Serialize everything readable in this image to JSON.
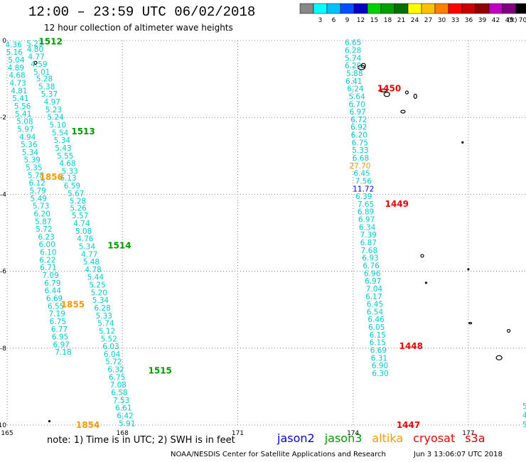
{
  "header": {
    "title": "12:00 – 23:59 UTC 06/02/2018",
    "subtitle": "12 hour collection of altimeter wave heights"
  },
  "colorbar": {
    "unit": "(ft)",
    "bins": [
      {
        "label": "",
        "color": "#888888"
      },
      {
        "label": "3",
        "color": "#00ffff"
      },
      {
        "label": "6",
        "color": "#00c0ff"
      },
      {
        "label": "9",
        "color": "#0050ff"
      },
      {
        "label": "12",
        "color": "#0000c0"
      },
      {
        "label": "15",
        "color": "#00d000"
      },
      {
        "label": "18",
        "color": "#00a000"
      },
      {
        "label": "21",
        "color": "#007000"
      },
      {
        "label": "24",
        "color": "#ffff00"
      },
      {
        "label": "27",
        "color": "#ffc000"
      },
      {
        "label": "30",
        "color": "#ff8000"
      },
      {
        "label": "33",
        "color": "#ff0000"
      },
      {
        "label": "36",
        "color": "#c80000"
      },
      {
        "label": "39",
        "color": "#900000"
      },
      {
        "label": "42",
        "color": "#c000c0"
      },
      {
        "label": "45",
        "color": "#800080"
      },
      {
        "label": "70",
        "color": "#000000"
      }
    ]
  },
  "footer": {
    "note": "note:  1) Time is in UTC;  2) SWH is in feet",
    "legend": [
      {
        "name": "jason2",
        "color": "#0000dd"
      },
      {
        "name": "jason3",
        "color": "#009900"
      },
      {
        "name": "altika",
        "color": "#ff9900"
      },
      {
        "name": "cryosat",
        "color": "#ee0000"
      },
      {
        "name": "s3a",
        "color": "#cc0000"
      }
    ],
    "credit": "NOAA/NESDIS Center for Satellite Applications and Research",
    "timestamp": "Jun  3 13:06:07 UTC 2018"
  },
  "chart_data": {
    "type": "scatter",
    "xlim": [
      165,
      178.5
    ],
    "ylim": [
      -10,
      0
    ],
    "x_ticks": [
      {
        "value": 165,
        "label": "165"
      },
      {
        "value": 168,
        "label": "168"
      },
      {
        "value": 171,
        "label": "171"
      },
      {
        "value": 174,
        "label": "174"
      },
      {
        "value": 177,
        "label": "177"
      }
    ],
    "y_ticks": [
      {
        "value": 0,
        "label": "0"
      },
      {
        "value": -2,
        "label": "-2"
      },
      {
        "value": -4,
        "label": "-4"
      },
      {
        "value": -6,
        "label": "-6"
      },
      {
        "value": -8,
        "label": "-8"
      },
      {
        "value": -10,
        "label": "-10"
      }
    ],
    "grid": "dotted",
    "tracks": [
      {
        "satellite": "altika",
        "color": "#00cccc",
        "points": [
          {
            "x": 165.72,
            "y": -0.07,
            "v": "5.23"
          },
          {
            "x": 165.73,
            "y": -0.22,
            "v": "4.80"
          },
          {
            "x": 165.76,
            "y": -0.42,
            "v": "4.77"
          },
          {
            "x": 165.83,
            "y": -0.61,
            "v": "4.59"
          },
          {
            "x": 165.9,
            "y": -0.81,
            "v": "5.01"
          },
          {
            "x": 165.97,
            "y": -0.99,
            "v": "5.28"
          },
          {
            "x": 166.03,
            "y": -1.19,
            "v": "5.38"
          },
          {
            "x": 166.1,
            "y": -1.39,
            "v": "5.37"
          },
          {
            "x": 166.17,
            "y": -1.59,
            "v": "4.97"
          },
          {
            "x": 166.21,
            "y": -1.79,
            "v": "5.23"
          },
          {
            "x": 166.26,
            "y": -1.99,
            "v": "5.24"
          },
          {
            "x": 166.32,
            "y": -2.19,
            "v": "5.10"
          },
          {
            "x": 166.38,
            "y": -2.39,
            "v": "5.54"
          },
          {
            "x": 166.43,
            "y": -2.59,
            "v": "5.34"
          },
          {
            "x": 166.46,
            "y": -2.79,
            "v": "5.43"
          },
          {
            "x": 166.51,
            "y": -2.99,
            "v": "5.55"
          },
          {
            "x": 166.57,
            "y": -3.19,
            "v": "4.68"
          },
          {
            "x": 166.63,
            "y": -3.39,
            "v": "5.33"
          },
          {
            "x": 166.59,
            "y": -3.57,
            "v": "6.13"
          },
          {
            "x": 166.69,
            "y": -3.77,
            "v": "6.59"
          },
          {
            "x": 166.79,
            "y": -3.97,
            "v": "5.67"
          },
          {
            "x": 166.84,
            "y": -4.17,
            "v": "5.28"
          },
          {
            "x": 166.85,
            "y": -4.35,
            "v": "5.26"
          },
          {
            "x": 166.9,
            "y": -4.55,
            "v": "5.57"
          },
          {
            "x": 166.94,
            "y": -4.75,
            "v": "4.74"
          },
          {
            "x": 166.99,
            "y": -4.95,
            "v": "5.08"
          },
          {
            "x": 167.03,
            "y": -5.15,
            "v": "4.76"
          },
          {
            "x": 167.08,
            "y": -5.35,
            "v": "5.34"
          },
          {
            "x": 167.14,
            "y": -5.55,
            "v": "4.77"
          },
          {
            "x": 167.19,
            "y": -5.75,
            "v": "5.48"
          },
          {
            "x": 167.24,
            "y": -5.95,
            "v": "4.78"
          },
          {
            "x": 167.3,
            "y": -6.15,
            "v": "5.44"
          },
          {
            "x": 167.35,
            "y": -6.35,
            "v": "5.25"
          },
          {
            "x": 167.39,
            "y": -6.55,
            "v": "5.20"
          },
          {
            "x": 167.43,
            "y": -6.75,
            "v": "5.34"
          },
          {
            "x": 167.48,
            "y": -6.95,
            "v": "6.28"
          },
          {
            "x": 167.52,
            "y": -7.15,
            "v": "5.33"
          },
          {
            "x": 167.57,
            "y": -7.35,
            "v": "5.74"
          },
          {
            "x": 167.6,
            "y": -7.55,
            "v": "5.12"
          },
          {
            "x": 167.65,
            "y": -7.75,
            "v": "5.52"
          },
          {
            "x": 167.7,
            "y": -7.95,
            "v": "6.03"
          },
          {
            "x": 167.73,
            "y": -8.15,
            "v": "6.04"
          },
          {
            "x": 167.77,
            "y": -8.35,
            "v": "5.72"
          },
          {
            "x": 167.83,
            "y": -8.55,
            "v": "6.32"
          },
          {
            "x": 167.86,
            "y": -8.75,
            "v": "6.75"
          },
          {
            "x": 167.89,
            "y": -8.95,
            "v": "7.08"
          },
          {
            "x": 167.92,
            "y": -9.15,
            "v": "6.58"
          },
          {
            "x": 167.97,
            "y": -9.35,
            "v": "7.53"
          },
          {
            "x": 168.03,
            "y": -9.55,
            "v": "6.61"
          },
          {
            "x": 168.07,
            "y": -9.75,
            "v": "6.42"
          },
          {
            "x": 168.12,
            "y": -9.95,
            "v": "5.91"
          }
        ]
      },
      {
        "satellite": "altika",
        "color": "#00cccc",
        "points": [
          {
            "x": 165.17,
            "y": -0.1,
            "v": "4.36"
          },
          {
            "x": 165.19,
            "y": -0.3,
            "v": "5.16"
          },
          {
            "x": 165.24,
            "y": -0.5,
            "v": "5.04"
          },
          {
            "x": 165.23,
            "y": -0.7,
            "v": "4.89"
          },
          {
            "x": 165.26,
            "y": -0.9,
            "v": "4.68"
          },
          {
            "x": 165.28,
            "y": -1.1,
            "v": "4.73"
          },
          {
            "x": 165.31,
            "y": -1.3,
            "v": "4.81"
          },
          {
            "x": 165.35,
            "y": -1.5,
            "v": "5.41"
          },
          {
            "x": 165.4,
            "y": -1.7,
            "v": "5.56"
          },
          {
            "x": 165.42,
            "y": -1.9,
            "v": "5.41"
          },
          {
            "x": 165.46,
            "y": -2.1,
            "v": "5.08"
          },
          {
            "x": 165.48,
            "y": -2.3,
            "v": "5.97"
          },
          {
            "x": 165.53,
            "y": -2.5,
            "v": "4.94"
          },
          {
            "x": 165.57,
            "y": -2.7,
            "v": "5.36"
          },
          {
            "x": 165.6,
            "y": -2.9,
            "v": "5.34"
          },
          {
            "x": 165.65,
            "y": -3.1,
            "v": "5.39"
          },
          {
            "x": 165.7,
            "y": -3.3,
            "v": "5.35"
          },
          {
            "x": 165.75,
            "y": -3.5,
            "v": "5.78"
          },
          {
            "x": 165.78,
            "y": -3.7,
            "v": "6.12"
          },
          {
            "x": 165.8,
            "y": -3.9,
            "v": "5.79"
          },
          {
            "x": 165.82,
            "y": -4.1,
            "v": "5.49"
          },
          {
            "x": 165.88,
            "y": -4.3,
            "v": "5.73"
          },
          {
            "x": 165.91,
            "y": -4.5,
            "v": "6.20"
          },
          {
            "x": 165.94,
            "y": -4.7,
            "v": "5.87"
          },
          {
            "x": 165.96,
            "y": -4.9,
            "v": "5.72"
          },
          {
            "x": 166.02,
            "y": -5.1,
            "v": "6.23"
          },
          {
            "x": 166.04,
            "y": -5.3,
            "v": "6.00"
          },
          {
            "x": 166.07,
            "y": -5.5,
            "v": "6.10"
          },
          {
            "x": 166.05,
            "y": -5.7,
            "v": "6.22"
          },
          {
            "x": 166.07,
            "y": -5.9,
            "v": "6.71"
          },
          {
            "x": 166.13,
            "y": -6.1,
            "v": "7.09"
          },
          {
            "x": 166.18,
            "y": -6.3,
            "v": "6.79"
          },
          {
            "x": 166.19,
            "y": -6.5,
            "v": "6.44"
          },
          {
            "x": 166.23,
            "y": -6.7,
            "v": "6.69"
          },
          {
            "x": 166.27,
            "y": -6.9,
            "v": "6.55"
          },
          {
            "x": 166.3,
            "y": -7.1,
            "v": "7.19"
          },
          {
            "x": 166.32,
            "y": -7.3,
            "v": "6.75"
          },
          {
            "x": 166.36,
            "y": -7.5,
            "v": "6.77"
          },
          {
            "x": 166.38,
            "y": -7.7,
            "v": "6.95"
          },
          {
            "x": 166.41,
            "y": -7.9,
            "v": "6.97"
          },
          {
            "x": 166.46,
            "y": -8.1,
            "v": "7.18"
          }
        ]
      },
      {
        "satellite": "altika",
        "color": "#00cccc",
        "points": [
          {
            "x": 174.0,
            "y": -0.05,
            "v": "6.65"
          },
          {
            "x": 174.0,
            "y": -0.25,
            "v": "6.28"
          },
          {
            "x": 174.0,
            "y": -0.45,
            "v": "5.74"
          },
          {
            "x": 174.0,
            "y": -0.65,
            "v": "6.20"
          },
          {
            "x": 174.04,
            "y": -0.85,
            "v": "5.88"
          },
          {
            "x": 174.02,
            "y": -1.05,
            "v": "6.41"
          },
          {
            "x": 174.06,
            "y": -1.25,
            "v": "6.24"
          },
          {
            "x": 174.1,
            "y": -1.45,
            "v": "5.64"
          },
          {
            "x": 174.1,
            "y": -1.65,
            "v": "6.70"
          },
          {
            "x": 174.12,
            "y": -1.85,
            "v": "6.97"
          },
          {
            "x": 174.15,
            "y": -2.05,
            "v": "6.72"
          },
          {
            "x": 174.15,
            "y": -2.25,
            "v": "6.92"
          },
          {
            "x": 174.16,
            "y": -2.45,
            "v": "6.20"
          },
          {
            "x": 174.18,
            "y": -2.65,
            "v": "6.75"
          },
          {
            "x": 174.19,
            "y": -2.85,
            "v": "5.33"
          },
          {
            "x": 174.2,
            "y": -3.05,
            "v": "6.68"
          },
          {
            "x": 174.23,
            "y": -3.45,
            "v": "6.45"
          },
          {
            "x": 174.27,
            "y": -3.65,
            "v": "7.56"
          },
          {
            "x": 174.28,
            "y": -4.05,
            "v": "6.39"
          },
          {
            "x": 174.33,
            "y": -4.25,
            "v": "7.65"
          },
          {
            "x": 174.33,
            "y": -4.45,
            "v": "6.89"
          },
          {
            "x": 174.35,
            "y": -4.65,
            "v": "6.97"
          },
          {
            "x": 174.37,
            "y": -4.85,
            "v": "6.34"
          },
          {
            "x": 174.4,
            "y": -5.05,
            "v": "7.39"
          },
          {
            "x": 174.4,
            "y": -5.25,
            "v": "6.87"
          },
          {
            "x": 174.42,
            "y": -5.45,
            "v": "7.68"
          },
          {
            "x": 174.45,
            "y": -5.65,
            "v": "6.93"
          },
          {
            "x": 174.47,
            "y": -5.85,
            "v": "6.76"
          },
          {
            "x": 174.5,
            "y": -6.05,
            "v": "6.96"
          },
          {
            "x": 174.52,
            "y": -6.25,
            "v": "6.97"
          },
          {
            "x": 174.55,
            "y": -6.45,
            "v": "7.04"
          },
          {
            "x": 174.54,
            "y": -6.65,
            "v": "6.17"
          },
          {
            "x": 174.57,
            "y": -6.85,
            "v": "6.45"
          },
          {
            "x": 174.57,
            "y": -7.05,
            "v": "6.54"
          },
          {
            "x": 174.6,
            "y": -7.25,
            "v": "6.46"
          },
          {
            "x": 174.61,
            "y": -7.45,
            "v": "6.05"
          },
          {
            "x": 174.64,
            "y": -7.65,
            "v": "6.15"
          },
          {
            "x": 174.64,
            "y": -7.85,
            "v": "6.15"
          },
          {
            "x": 174.66,
            "y": -8.05,
            "v": "6.69"
          },
          {
            "x": 174.68,
            "y": -8.25,
            "v": "6.31"
          },
          {
            "x": 174.7,
            "y": -8.45,
            "v": "6.90"
          },
          {
            "x": 174.71,
            "y": -8.65,
            "v": "6.30"
          }
        ]
      },
      {
        "satellite": "altika",
        "color": "#ff9900",
        "points": [
          {
            "x": 174.18,
            "y": -3.25,
            "v": "27.70"
          }
        ]
      },
      {
        "satellite": "jason2",
        "color": "#0000dd",
        "points": [
          {
            "x": 174.27,
            "y": -3.85,
            "v": "11.72"
          }
        ]
      }
    ],
    "time_labels": [
      {
        "x": 166.13,
        "y": -0.03,
        "text": "1512",
        "color": "#009900"
      },
      {
        "x": 166.98,
        "y": -2.37,
        "text": "1513",
        "color": "#009900"
      },
      {
        "x": 167.92,
        "y": -5.33,
        "text": "1514",
        "color": "#009900"
      },
      {
        "x": 168.98,
        "y": -8.59,
        "text": "1515",
        "color": "#009900"
      },
      {
        "x": 166.15,
        "y": -3.55,
        "text": "1856",
        "color": "#ff9900"
      },
      {
        "x": 166.71,
        "y": -6.87,
        "text": "1855",
        "color": "#ff9900"
      },
      {
        "x": 167.1,
        "y": -10.0,
        "text": "1854",
        "color": "#ff9900"
      },
      {
        "x": 174.94,
        "y": -1.25,
        "text": "1450",
        "color": "#ee0000"
      },
      {
        "x": 175.14,
        "y": -4.25,
        "text": "1449",
        "color": "#ee0000"
      },
      {
        "x": 175.51,
        "y": -7.95,
        "text": "1448",
        "color": "#ee0000"
      },
      {
        "x": 175.44,
        "y": -10.0,
        "text": "1447",
        "color": "#ee0000"
      }
    ],
    "edge_values": [
      "5",
      "4",
      "5"
    ]
  }
}
